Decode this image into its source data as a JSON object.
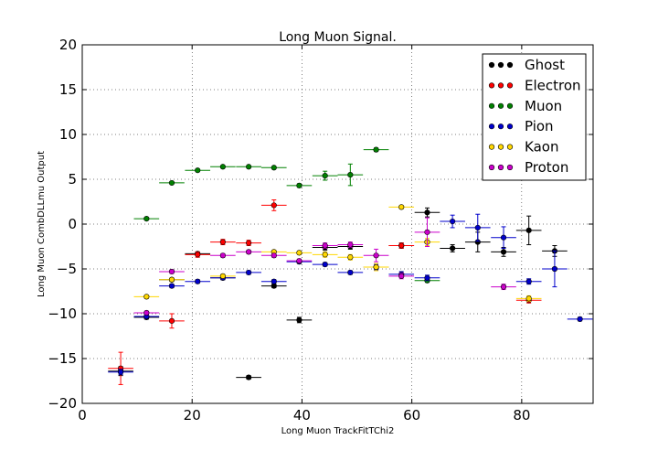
{
  "chart_data": {
    "type": "scatter",
    "title": "Long Muon Signal.",
    "xlabel": "Long Muon TrackFitTChi2",
    "ylabel": "Long Muon CombDLLmu Output",
    "xlim": [
      0,
      93
    ],
    "ylim": [
      -20,
      20
    ],
    "xticks": [
      0,
      20,
      40,
      60,
      80
    ],
    "yticks": [
      -20,
      -15,
      -10,
      -5,
      0,
      5,
      10,
      15,
      20
    ],
    "grid": true,
    "legend_position": "top-right",
    "series": [
      {
        "name": "Ghost",
        "color": "#000000",
        "points": [
          {
            "x": 7.0,
            "y": -16.4,
            "xerr": 2.3,
            "yerr": 0.5
          },
          {
            "x": 11.7,
            "y": -10.4,
            "xerr": 2.3,
            "yerr": 0.2
          },
          {
            "x": 16.3,
            "y": -6.2,
            "xerr": 2.3,
            "yerr": 0.2
          },
          {
            "x": 21.0,
            "y": -3.3,
            "xerr": 2.3,
            "yerr": 0.2
          },
          {
            "x": 25.6,
            "y": -6.0,
            "xerr": 2.3,
            "yerr": 0.2
          },
          {
            "x": 30.3,
            "y": -17.1,
            "xerr": 2.3,
            "yerr": 0.2
          },
          {
            "x": 34.9,
            "y": -6.9,
            "xerr": 2.3,
            "yerr": 0.2
          },
          {
            "x": 39.5,
            "y": -10.7,
            "xerr": 2.3,
            "yerr": 0.3
          },
          {
            "x": 44.2,
            "y": -2.6,
            "xerr": 2.3,
            "yerr": 0.3
          },
          {
            "x": 48.8,
            "y": -2.5,
            "xerr": 2.3,
            "yerr": 0.3
          },
          {
            "x": 58.1,
            "y": -2.4,
            "xerr": 2.3,
            "yerr": 0.3
          },
          {
            "x": 62.8,
            "y": 1.3,
            "xerr": 2.3,
            "yerr": 0.5
          },
          {
            "x": 67.4,
            "y": -2.7,
            "xerr": 2.3,
            "yerr": 0.4
          },
          {
            "x": 72.0,
            "y": -2.0,
            "xerr": 2.3,
            "yerr": 1.1
          },
          {
            "x": 76.7,
            "y": -3.1,
            "xerr": 2.3,
            "yerr": 0.5
          },
          {
            "x": 81.3,
            "y": -0.7,
            "xerr": 2.3,
            "yerr": 1.6
          },
          {
            "x": 86.0,
            "y": -3.0,
            "xerr": 2.3,
            "yerr": 0.6
          }
        ]
      },
      {
        "name": "Electron",
        "color": "#ff0000",
        "points": [
          {
            "x": 7.0,
            "y": -16.1,
            "xerr": 2.3,
            "yerr": 1.8
          },
          {
            "x": 16.3,
            "y": -10.8,
            "xerr": 2.3,
            "yerr": 0.8
          },
          {
            "x": 21.0,
            "y": -3.4,
            "xerr": 2.3,
            "yerr": 0.3
          },
          {
            "x": 25.6,
            "y": -2.0,
            "xerr": 2.3,
            "yerr": 0.3
          },
          {
            "x": 30.3,
            "y": -2.1,
            "xerr": 2.3,
            "yerr": 0.3
          },
          {
            "x": 34.9,
            "y": 2.1,
            "xerr": 2.3,
            "yerr": 0.6
          },
          {
            "x": 58.1,
            "y": -2.4,
            "xerr": 2.3,
            "yerr": 0.3
          },
          {
            "x": 81.3,
            "y": -8.5,
            "xerr": 2.3,
            "yerr": 0.3
          }
        ]
      },
      {
        "name": "Muon",
        "color": "#008000",
        "points": [
          {
            "x": 11.7,
            "y": 0.6,
            "xerr": 2.3,
            "yerr": 0.1
          },
          {
            "x": 16.3,
            "y": 4.6,
            "xerr": 2.3,
            "yerr": 0.1
          },
          {
            "x": 21.0,
            "y": 6.0,
            "xerr": 2.3,
            "yerr": 0.1
          },
          {
            "x": 25.6,
            "y": 6.4,
            "xerr": 2.3,
            "yerr": 0.1
          },
          {
            "x": 30.3,
            "y": 6.4,
            "xerr": 2.3,
            "yerr": 0.1
          },
          {
            "x": 34.9,
            "y": 6.3,
            "xerr": 2.3,
            "yerr": 0.1
          },
          {
            "x": 39.5,
            "y": 4.3,
            "xerr": 2.3,
            "yerr": 0.2
          },
          {
            "x": 44.2,
            "y": 5.4,
            "xerr": 2.3,
            "yerr": 0.5
          },
          {
            "x": 48.8,
            "y": 5.5,
            "xerr": 2.3,
            "yerr": 1.2
          },
          {
            "x": 53.5,
            "y": 8.3,
            "xerr": 2.3,
            "yerr": 0.2
          },
          {
            "x": 62.8,
            "y": -6.3,
            "xerr": 2.3,
            "yerr": 0.2
          }
        ]
      },
      {
        "name": "Pion",
        "color": "#0000cc",
        "points": [
          {
            "x": 7.0,
            "y": -16.5,
            "xerr": 2.3,
            "yerr": 0.3
          },
          {
            "x": 11.7,
            "y": -10.3,
            "xerr": 2.3,
            "yerr": 0.2
          },
          {
            "x": 16.3,
            "y": -6.9,
            "xerr": 2.3,
            "yerr": 0.2
          },
          {
            "x": 21.0,
            "y": -6.4,
            "xerr": 2.3,
            "yerr": 0.2
          },
          {
            "x": 25.6,
            "y": -6.0,
            "xerr": 2.3,
            "yerr": 0.2
          },
          {
            "x": 30.3,
            "y": -5.4,
            "xerr": 2.3,
            "yerr": 0.2
          },
          {
            "x": 34.9,
            "y": -6.4,
            "xerr": 2.3,
            "yerr": 0.2
          },
          {
            "x": 39.5,
            "y": -4.2,
            "xerr": 2.3,
            "yerr": 0.2
          },
          {
            "x": 44.2,
            "y": -4.5,
            "xerr": 2.3,
            "yerr": 0.2
          },
          {
            "x": 48.8,
            "y": -5.4,
            "xerr": 2.3,
            "yerr": 0.2
          },
          {
            "x": 53.5,
            "y": -4.8,
            "xerr": 2.3,
            "yerr": 0.3
          },
          {
            "x": 58.1,
            "y": -5.6,
            "xerr": 2.3,
            "yerr": 0.3
          },
          {
            "x": 62.8,
            "y": -6.0,
            "xerr": 2.3,
            "yerr": 0.3
          },
          {
            "x": 67.4,
            "y": 0.3,
            "xerr": 2.3,
            "yerr": 0.7
          },
          {
            "x": 72.0,
            "y": -0.4,
            "xerr": 2.3,
            "yerr": 1.5
          },
          {
            "x": 76.7,
            "y": -1.5,
            "xerr": 2.3,
            "yerr": 1.2
          },
          {
            "x": 81.3,
            "y": -6.4,
            "xerr": 2.3,
            "yerr": 0.3
          },
          {
            "x": 86.0,
            "y": -5.0,
            "xerr": 2.3,
            "yerr": 2.0
          },
          {
            "x": 90.6,
            "y": -10.6,
            "xerr": 2.3,
            "yerr": 0.2
          }
        ]
      },
      {
        "name": "Kaon",
        "color": "#ffd700",
        "points": [
          {
            "x": 11.7,
            "y": -8.1,
            "xerr": 2.3,
            "yerr": 0.2
          },
          {
            "x": 16.3,
            "y": -6.2,
            "xerr": 2.3,
            "yerr": 0.2
          },
          {
            "x": 25.6,
            "y": -5.8,
            "xerr": 2.3,
            "yerr": 0.2
          },
          {
            "x": 34.9,
            "y": -3.1,
            "xerr": 2.3,
            "yerr": 0.2
          },
          {
            "x": 39.5,
            "y": -3.2,
            "xerr": 2.3,
            "yerr": 0.2
          },
          {
            "x": 44.2,
            "y": -3.4,
            "xerr": 2.3,
            "yerr": 0.3
          },
          {
            "x": 48.8,
            "y": -3.7,
            "xerr": 2.3,
            "yerr": 0.3
          },
          {
            "x": 53.5,
            "y": -4.8,
            "xerr": 2.3,
            "yerr": 0.4
          },
          {
            "x": 58.1,
            "y": 1.9,
            "xerr": 2.3,
            "yerr": 0.2
          },
          {
            "x": 62.8,
            "y": -2.0,
            "xerr": 2.3,
            "yerr": 0.4
          },
          {
            "x": 81.3,
            "y": -8.3,
            "xerr": 2.3,
            "yerr": 0.3
          }
        ]
      },
      {
        "name": "Proton",
        "color": "#cc00cc",
        "points": [
          {
            "x": 11.7,
            "y": -9.9,
            "xerr": 2.3,
            "yerr": 0.2
          },
          {
            "x": 16.3,
            "y": -5.3,
            "xerr": 2.3,
            "yerr": 0.2
          },
          {
            "x": 25.6,
            "y": -3.5,
            "xerr": 2.3,
            "yerr": 0.2
          },
          {
            "x": 30.3,
            "y": -3.1,
            "xerr": 2.3,
            "yerr": 0.2
          },
          {
            "x": 34.9,
            "y": -3.5,
            "xerr": 2.3,
            "yerr": 0.2
          },
          {
            "x": 39.5,
            "y": -4.1,
            "xerr": 2.3,
            "yerr": 0.2
          },
          {
            "x": 44.2,
            "y": -2.4,
            "xerr": 2.3,
            "yerr": 0.3
          },
          {
            "x": 48.8,
            "y": -2.3,
            "xerr": 2.3,
            "yerr": 0.3
          },
          {
            "x": 53.5,
            "y": -3.5,
            "xerr": 2.3,
            "yerr": 0.7
          },
          {
            "x": 58.1,
            "y": -5.8,
            "xerr": 2.3,
            "yerr": 0.3
          },
          {
            "x": 62.8,
            "y": -0.9,
            "xerr": 2.3,
            "yerr": 1.6
          },
          {
            "x": 76.7,
            "y": -7.0,
            "xerr": 2.3,
            "yerr": 0.3
          }
        ]
      }
    ]
  }
}
